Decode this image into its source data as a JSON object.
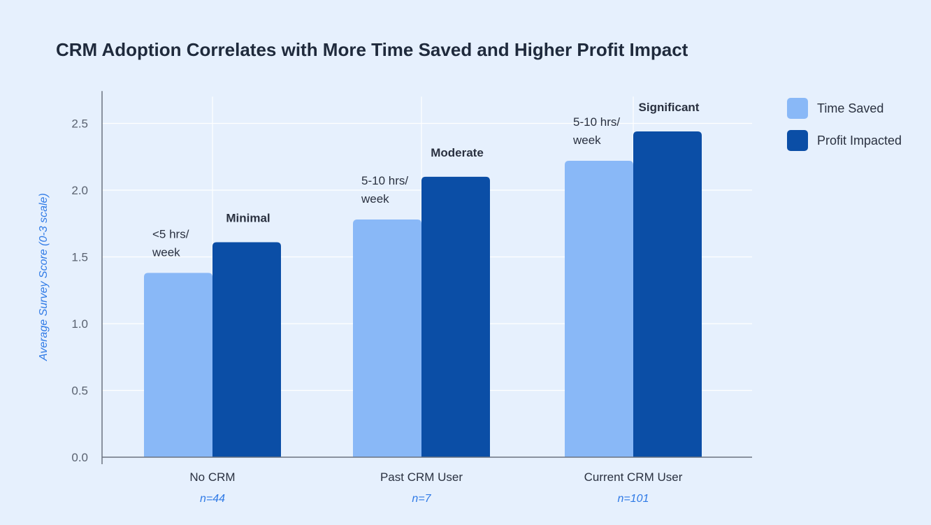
{
  "chart_data": {
    "type": "bar",
    "title": "CRM Adoption Correlates with More Time Saved and Higher Profit Impact",
    "ylabel": "Average Survey Score (0-3 scale)",
    "xlabel": "",
    "ylim": [
      0,
      2.7
    ],
    "yticks": [
      "0.0",
      "0.5",
      "1.0",
      "1.5",
      "2.0",
      "2.5"
    ],
    "ytick_values": [
      0,
      0.5,
      1.0,
      1.5,
      2.0,
      2.5
    ],
    "grid": true,
    "legend_position": "right",
    "categories": [
      "No CRM",
      "Past CRM User",
      "Current CRM User"
    ],
    "category_notes": [
      "n=44",
      "n=7",
      "n=101"
    ],
    "series": [
      {
        "name": "Time Saved",
        "color": "#89b8f7",
        "values": [
          1.38,
          1.78,
          2.22
        ],
        "annotations": [
          "<5 hrs/\nweek",
          "5-10 hrs/\nweek",
          "5-10 hrs/\nweek"
        ]
      },
      {
        "name": "Profit Impacted",
        "color": "#0b4ea6",
        "values": [
          1.61,
          2.1,
          2.44
        ],
        "annotations": [
          "Minimal",
          "Moderate",
          "Significant"
        ]
      }
    ]
  },
  "colors": {
    "background": "#e6f0fd",
    "axis": "#6b7380",
    "grid": "#ffffff",
    "ylabel": "#2f7ae6",
    "note": "#2f7ae6"
  }
}
